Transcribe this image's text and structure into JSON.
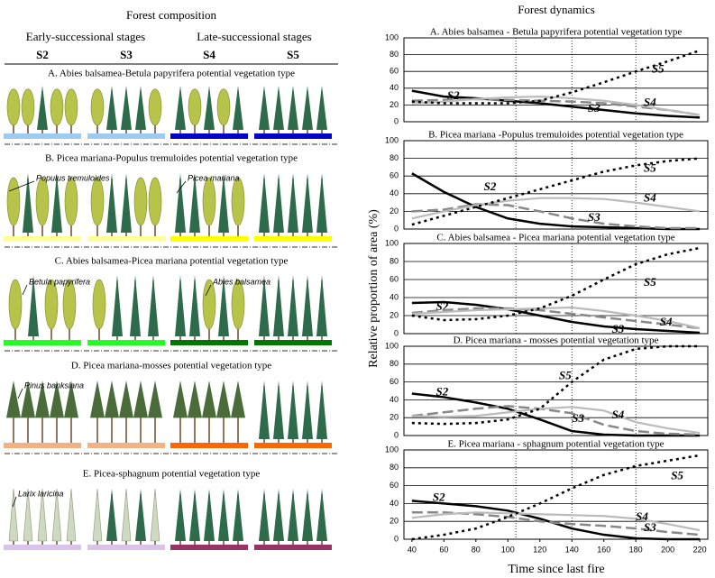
{
  "composition": {
    "title": "Forest composition",
    "early": "Early-successional stages",
    "late": "Late-successional stages",
    "stages": [
      "S2",
      "S3",
      "S4",
      "S5"
    ],
    "rows": [
      {
        "title": "A. Abies balsamea-Betula papyrifera potential vegetation type",
        "species": [],
        "ground_colors": [
          "#9ecbf0",
          "#9ecbf0",
          "#0000cc",
          "#0000cc"
        ]
      },
      {
        "title": "B. Picea mariana-Populus tremuloides potential vegetation type",
        "species": [
          "Populus tremuloides",
          "Picea mariana"
        ],
        "ground_colors": [
          "#ffff99",
          "#ffff99",
          "#ffff00",
          "#ffff00"
        ]
      },
      {
        "title": "C. Abies balsamea-Picea mariana potential vegetation type",
        "species": [
          "Betula papyrifera",
          "Abies balsamea"
        ],
        "ground_colors": [
          "#22ff22",
          "#22ff22",
          "#007700",
          "#007700"
        ]
      },
      {
        "title": "D. Picea mariana-mosses potential vegetation type",
        "species": [
          "Pinus banksiana"
        ],
        "ground_colors": [
          "#f4b183",
          "#f4b183",
          "#ff6600",
          "#ff6600"
        ]
      },
      {
        "title": "E. Picea-sphagnum potential vegetation type",
        "species": [
          "Larix laricina"
        ],
        "ground_colors": [
          "#d9c3e9",
          "#d9c3e9",
          "#993366",
          "#993366"
        ]
      }
    ]
  },
  "dynamics": {
    "title": "Forest dynamics",
    "x_label": "Time since last fire",
    "y_label": "Relative proportion of area (%)"
  },
  "chart_data": [
    {
      "type": "line",
      "title": "A. Abies balsamea - Betula papyrifera potential vegetation type",
      "x": [
        40,
        60,
        80,
        100,
        120,
        140,
        160,
        180,
        200,
        220
      ],
      "xlim": [
        35,
        225
      ],
      "ylim": [
        0,
        100
      ],
      "yticks": [
        0,
        20,
        40,
        60,
        80,
        100
      ],
      "vlines": [
        105,
        140,
        180
      ],
      "grid": true,
      "series": [
        {
          "name": "S2",
          "color": "#000000",
          "values": [
            37,
            30,
            28,
            25,
            22,
            18,
            14,
            10,
            7,
            5
          ]
        },
        {
          "name": "S3",
          "color": "#888888",
          "values": [
            25,
            26,
            27,
            26,
            25,
            24,
            22,
            18,
            14,
            8
          ]
        },
        {
          "name": "S4",
          "color": "#bbbbbb",
          "values": [
            22,
            24,
            27,
            29,
            30,
            28,
            25,
            20,
            14,
            8
          ]
        },
        {
          "name": "S5",
          "color": "#000000",
          "values": [
            24,
            22,
            22,
            22,
            25,
            35,
            47,
            60,
            72,
            85
          ]
        }
      ]
    },
    {
      "type": "line",
      "title": "B. Picea mariana -Populus tremuloides potential vegetation type",
      "x": [
        40,
        60,
        80,
        100,
        120,
        140,
        160,
        180,
        200,
        220
      ],
      "xlim": [
        35,
        225
      ],
      "ylim": [
        0,
        100
      ],
      "yticks": [
        0,
        20,
        40,
        60,
        80,
        100
      ],
      "vlines": [
        105,
        140,
        180
      ],
      "grid": true,
      "series": [
        {
          "name": "S2",
          "color": "#000000",
          "values": [
            63,
            42,
            25,
            12,
            6,
            3,
            2,
            1,
            0,
            0
          ]
        },
        {
          "name": "S3",
          "color": "#888888",
          "values": [
            20,
            22,
            28,
            27,
            20,
            12,
            6,
            3,
            1,
            1
          ]
        },
        {
          "name": "S4",
          "color": "#bbbbbb",
          "values": [
            12,
            20,
            27,
            32,
            35,
            35,
            34,
            30,
            25,
            20
          ]
        },
        {
          "name": "S5",
          "color": "#000000",
          "values": [
            5,
            15,
            25,
            35,
            45,
            55,
            65,
            72,
            77,
            80
          ]
        }
      ]
    },
    {
      "type": "line",
      "title": "C. Abies balsamea - Picea mariana potential vegetation type",
      "x": [
        40,
        60,
        80,
        100,
        120,
        140,
        160,
        180,
        200,
        220
      ],
      "xlim": [
        35,
        225
      ],
      "ylim": [
        0,
        100
      ],
      "yticks": [
        0,
        20,
        40,
        60,
        80,
        100
      ],
      "vlines": [
        105,
        140,
        180
      ],
      "grid": true,
      "series": [
        {
          "name": "S2",
          "color": "#000000",
          "values": [
            34,
            35,
            32,
            27,
            20,
            13,
            8,
            5,
            3,
            1
          ]
        },
        {
          "name": "S3",
          "color": "#888888",
          "values": [
            23,
            26,
            28,
            28,
            26,
            22,
            18,
            14,
            10,
            6
          ]
        },
        {
          "name": "S4",
          "color": "#bbbbbb",
          "values": [
            22,
            24,
            26,
            27,
            28,
            29,
            25,
            20,
            14,
            6
          ]
        },
        {
          "name": "S5",
          "color": "#000000",
          "values": [
            20,
            15,
            16,
            20,
            28,
            42,
            60,
            77,
            88,
            95
          ]
        }
      ]
    },
    {
      "type": "line",
      "title": "D. Picea mariana - mosses potential vegetation type",
      "x": [
        40,
        60,
        80,
        100,
        120,
        140,
        160,
        180,
        200,
        220
      ],
      "xlim": [
        35,
        225
      ],
      "ylim": [
        0,
        100
      ],
      "yticks": [
        0,
        20,
        40,
        60,
        80,
        100
      ],
      "vlines": [
        105,
        140,
        180
      ],
      "grid": true,
      "series": [
        {
          "name": "S2",
          "color": "#000000",
          "values": [
            47,
            43,
            37,
            30,
            18,
            5,
            1,
            0,
            0,
            0
          ]
        },
        {
          "name": "S3",
          "color": "#888888",
          "values": [
            22,
            26,
            30,
            33,
            30,
            25,
            12,
            5,
            2,
            1
          ]
        },
        {
          "name": "S4",
          "color": "#bbbbbb",
          "values": [
            22,
            21,
            22,
            26,
            30,
            32,
            28,
            15,
            8,
            3
          ]
        },
        {
          "name": "S5",
          "color": "#000000",
          "values": [
            14,
            13,
            14,
            18,
            30,
            60,
            85,
            97,
            100,
            100
          ]
        }
      ]
    },
    {
      "type": "line",
      "title": "E. Picea mariana - sphagnum potential vegetation type",
      "x": [
        40,
        60,
        80,
        100,
        120,
        140,
        160,
        180,
        200,
        220
      ],
      "xlim": [
        35,
        225
      ],
      "ylim": [
        0,
        100
      ],
      "yticks": [
        0,
        20,
        40,
        60,
        80,
        100
      ],
      "vlines": [
        105,
        140,
        180
      ],
      "grid": true,
      "xticks": [
        40,
        60,
        80,
        100,
        120,
        140,
        160,
        180,
        200,
        220
      ],
      "series": [
        {
          "name": "S2",
          "color": "#000000",
          "values": [
            43,
            40,
            37,
            32,
            23,
            12,
            5,
            1,
            0,
            0
          ]
        },
        {
          "name": "S3",
          "color": "#888888",
          "values": [
            30,
            30,
            28,
            25,
            20,
            17,
            15,
            12,
            8,
            5
          ]
        },
        {
          "name": "S4",
          "color": "#bbbbbb",
          "values": [
            24,
            28,
            30,
            29,
            28,
            27,
            26,
            23,
            17,
            10
          ]
        },
        {
          "name": "S5",
          "color": "#000000",
          "values": [
            0,
            5,
            12,
            25,
            40,
            57,
            72,
            82,
            88,
            94
          ]
        }
      ]
    }
  ]
}
